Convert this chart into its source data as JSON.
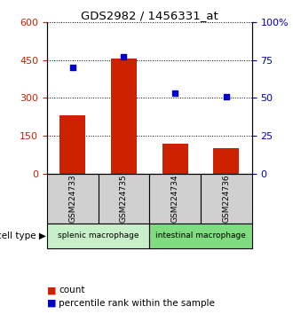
{
  "title": "GDS2982 / 1456331_at",
  "samples": [
    "GSM224733",
    "GSM224735",
    "GSM224734",
    "GSM224736"
  ],
  "counts": [
    230,
    455,
    120,
    100
  ],
  "percentiles": [
    70,
    77,
    53,
    51
  ],
  "left_ylim": [
    0,
    600
  ],
  "left_yticks": [
    0,
    150,
    300,
    450,
    600
  ],
  "right_ylim": [
    0,
    100
  ],
  "right_yticks": [
    0,
    25,
    50,
    75,
    100
  ],
  "right_yticklabels": [
    "0",
    "25",
    "50",
    "75",
    "100%"
  ],
  "bar_color": "#cc2200",
  "dot_color": "#0000cc",
  "left_tick_color": "#cc2200",
  "right_tick_color": "#0000cc",
  "groups": [
    {
      "label": "splenic macrophage",
      "samples": [
        0,
        1
      ],
      "color": "#c8f0c8"
    },
    {
      "label": "intestinal macrophage",
      "samples": [
        2,
        3
      ],
      "color": "#7fdd7f"
    }
  ],
  "cell_type_label": "cell type",
  "legend_count": "count",
  "legend_percentile": "percentile rank within the sample",
  "bar_width": 0.5,
  "grid_color": "black",
  "sample_box_color": "#d0d0d0"
}
